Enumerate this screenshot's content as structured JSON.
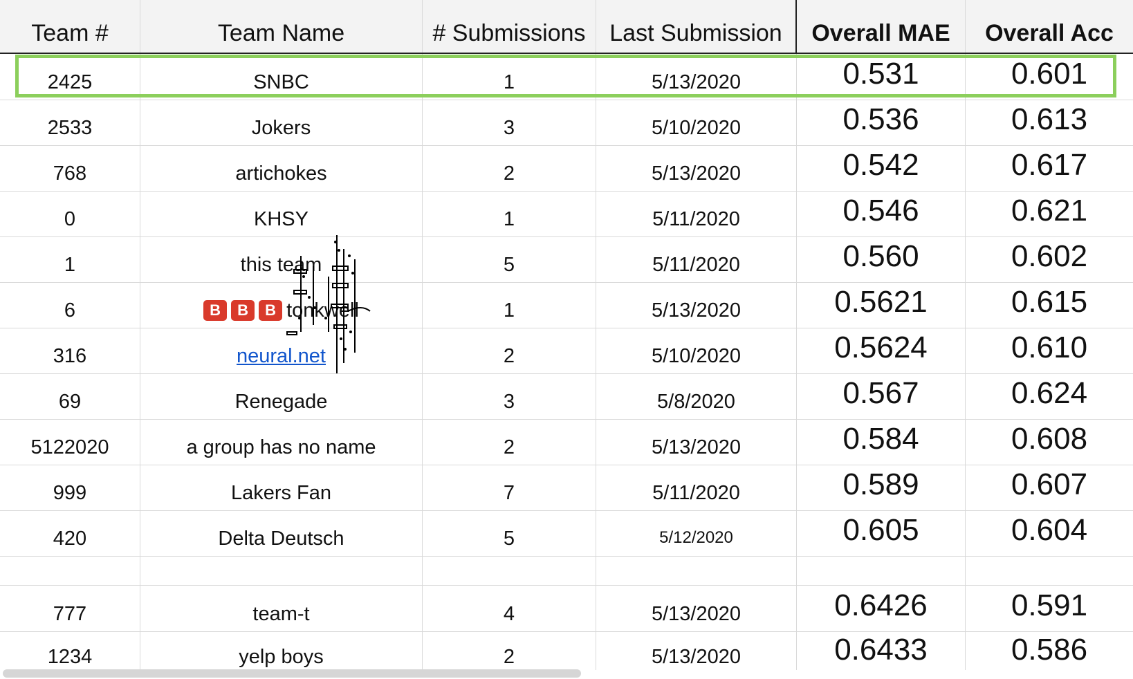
{
  "columns": [
    "Team #",
    "Team Name",
    "# Submissions",
    "Last Submission",
    "Overall MAE",
    "Overall Acc"
  ],
  "rows": [
    {
      "team": "2425",
      "name": "SNBC",
      "subs": "1",
      "last": "5/13/2020",
      "mae": "0.531",
      "acc": "0.601"
    },
    {
      "team": "2533",
      "name": "Jokers",
      "subs": "3",
      "last": "5/10/2020",
      "mae": "0.536",
      "acc": "0.613"
    },
    {
      "team": "768",
      "name": "artichokes",
      "subs": "2",
      "last": "5/13/2020",
      "mae": "0.542",
      "acc": "0.617"
    },
    {
      "team": "0",
      "name": "KHSY",
      "subs": "1",
      "last": "5/11/2020",
      "mae": "0.546",
      "acc": "0.621"
    },
    {
      "team": "1",
      "name": "this team",
      "subs": "5",
      "last": "5/11/2020",
      "mae": "0.560",
      "acc": "0.602"
    },
    {
      "team": "6",
      "name": "tonkwell",
      "subs": "1",
      "last": "5/13/2020",
      "mae": "0.5621",
      "acc": "0.615"
    },
    {
      "team": "316",
      "name": "neural.net",
      "subs": "2",
      "last": "5/10/2020",
      "mae": "0.5624",
      "acc": "0.610"
    },
    {
      "team": "69",
      "name": "Renegade",
      "subs": "3",
      "last": "5/8/2020",
      "mae": "0.567",
      "acc": "0.624"
    },
    {
      "team": "5122020",
      "name": "a group has no name",
      "subs": "2",
      "last": "5/13/2020",
      "mae": "0.584",
      "acc": "0.608"
    },
    {
      "team": "999",
      "name": "Lakers Fan",
      "subs": "7",
      "last": "5/11/2020",
      "mae": "0.589",
      "acc": "0.607"
    },
    {
      "team": "420",
      "name": "Delta Deutsch",
      "subs": "5",
      "last": "5/12/2020",
      "mae": "0.605",
      "acc": "0.604"
    },
    {
      "team": "777",
      "name": "team-t",
      "subs": "4",
      "last": "5/13/2020",
      "mae": "0.6426",
      "acc": "0.591"
    },
    {
      "team": "1234",
      "name": "yelp boys",
      "subs": "2",
      "last": "5/13/2020",
      "mae": "0.6433",
      "acc": "0.586"
    }
  ],
  "emoji_badge": "B",
  "highlight_color": "#8ccf5c",
  "link_color": "#1155cc"
}
